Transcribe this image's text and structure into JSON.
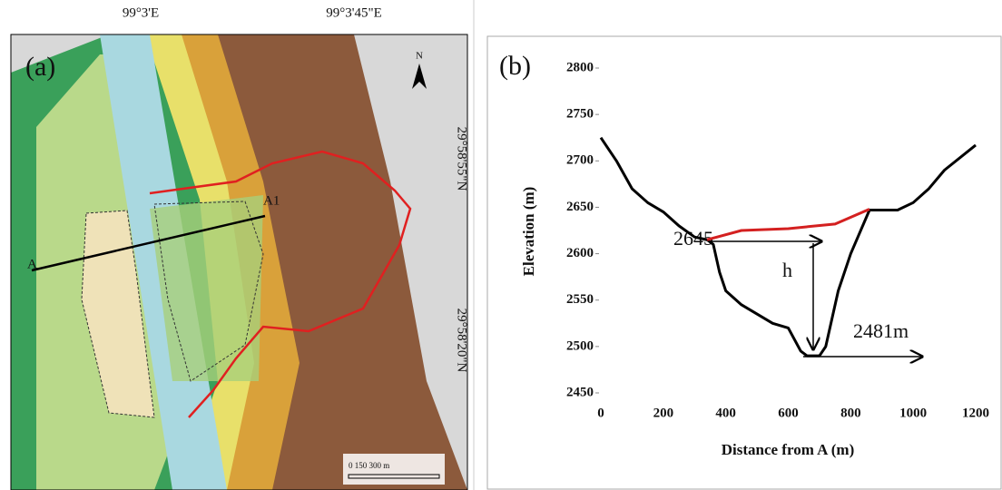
{
  "map": {
    "panel_label": "(a)",
    "lon_labels": [
      "99°3'E",
      "99°3'45\"E"
    ],
    "lat_labels": [
      "29°58'55\"N",
      "29°58'20\"N"
    ],
    "points": [
      "A",
      "A1"
    ],
    "north": "N",
    "scale_bar": "0  150 300 m"
  },
  "chart_data": {
    "type": "line",
    "panel_label": "(b)",
    "x_label": "Distance from A (m)",
    "y_label": "Elevation (m)",
    "xlim": [
      0,
      1200
    ],
    "ylim": [
      2450,
      2800
    ],
    "xticks": [
      0,
      200,
      400,
      600,
      800,
      1000,
      1200
    ],
    "yticks": [
      2450,
      2500,
      2550,
      2600,
      2650,
      2700,
      2750,
      2800
    ],
    "annotations": [
      "2645",
      "h",
      "2481m"
    ],
    "series": [
      {
        "color": "#000000",
        "x": [
          0,
          50,
          100,
          150,
          200,
          250,
          300,
          340,
          360,
          380,
          400,
          450,
          500,
          550,
          600,
          640,
          660,
          700,
          720,
          760,
          800,
          860,
          950,
          1000,
          1050,
          1100,
          1200
        ],
        "values": [
          2725,
          2700,
          2670,
          2655,
          2645,
          2630,
          2618,
          2615,
          2610,
          2580,
          2560,
          2545,
          2535,
          2525,
          2520,
          2495,
          2490,
          2490,
          2500,
          2560,
          2600,
          2647,
          2647,
          2655,
          2670,
          2690,
          2717
        ]
      },
      {
        "color": "#d42020",
        "x": [
          340,
          450,
          600,
          750,
          860
        ],
        "values": [
          2615,
          2625,
          2627,
          2632,
          2648
        ]
      }
    ]
  }
}
